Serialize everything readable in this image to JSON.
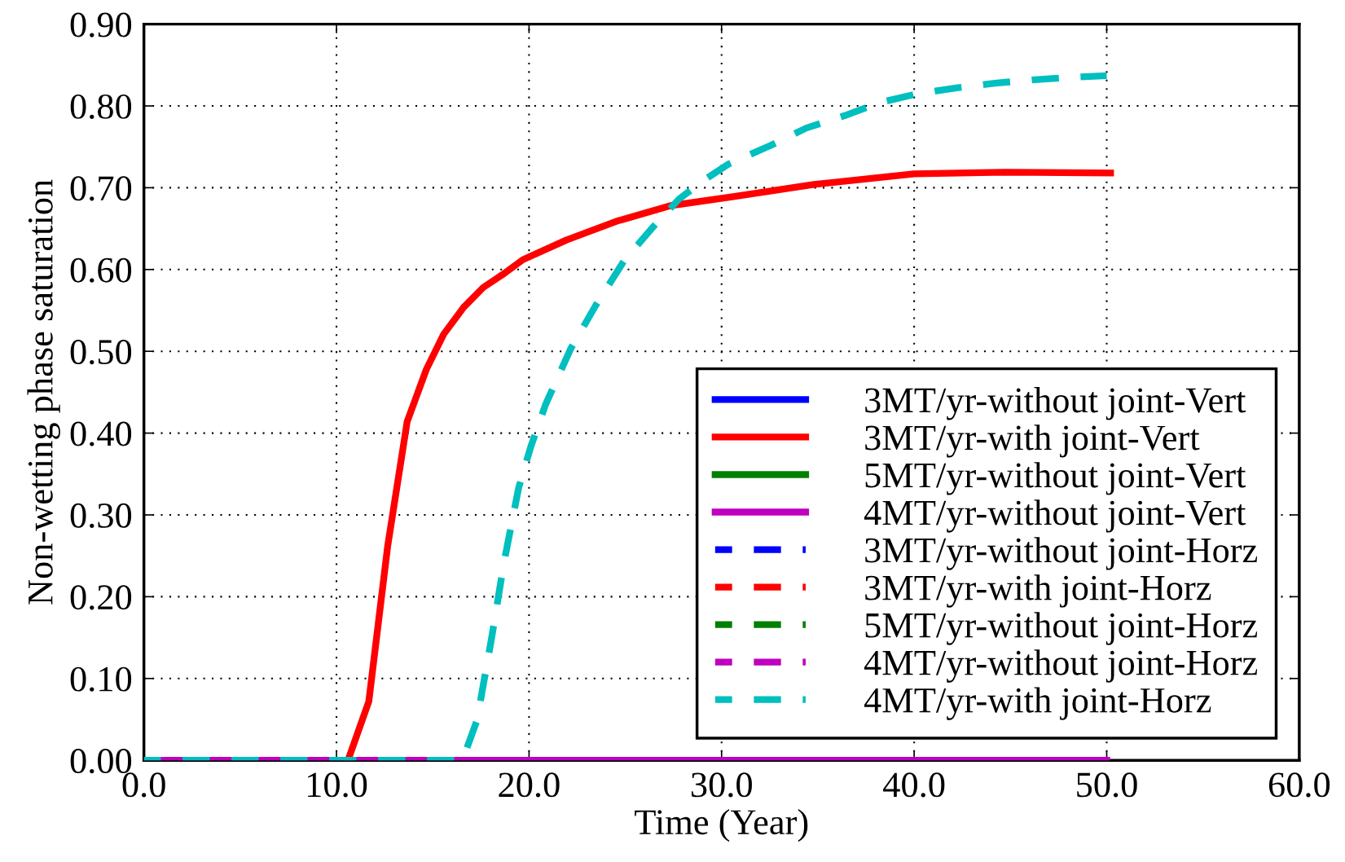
{
  "chart_data": {
    "type": "line",
    "xlabel": "Time (Year)",
    "ylabel": "Non-wetting phase saturation",
    "xlim": [
      0,
      60
    ],
    "ylim": [
      0,
      0.9
    ],
    "xticks": [
      {
        "value": 0,
        "label": "0.0"
      },
      {
        "value": 10,
        "label": "10.0"
      },
      {
        "value": 20,
        "label": "20.0"
      },
      {
        "value": 30,
        "label": "30.0"
      },
      {
        "value": 40,
        "label": "40.0"
      },
      {
        "value": 50,
        "label": "50.0"
      },
      {
        "value": 60,
        "label": "60.0"
      }
    ],
    "yticks": [
      {
        "value": 0,
        "label": "0.00"
      },
      {
        "value": 0.1,
        "label": "0.10"
      },
      {
        "value": 0.2,
        "label": "0.20"
      },
      {
        "value": 0.3,
        "label": "0.30"
      },
      {
        "value": 0.4,
        "label": "0.40"
      },
      {
        "value": 0.5,
        "label": "0.50"
      },
      {
        "value": 0.6,
        "label": "0.60"
      },
      {
        "value": 0.7,
        "label": "0.70"
      },
      {
        "value": 0.8,
        "label": "0.80"
      },
      {
        "value": 0.9,
        "label": "0.90"
      }
    ],
    "grid": true,
    "legend": "bottom right",
    "series": [
      {
        "name": "3MT/yr-without joint-Vert",
        "color": "#0000ff",
        "line_style": "solid"
      },
      {
        "name": "3MT/yr-with joint-Vert",
        "color": "#ff0000",
        "line_style": "solid",
        "x": [
          10.6,
          11.68,
          12.66,
          13.67,
          14.67,
          15.57,
          16.61,
          17.62,
          18.64,
          19.68,
          21.94,
          24.54,
          27.34,
          30.6,
          34.8,
          40.0,
          44.7,
          50.2
        ],
        "values": [
          0,
          0.072,
          0.262,
          0.414,
          0.478,
          0.521,
          0.554,
          0.578,
          0.594,
          0.612,
          0.636,
          0.659,
          0.678,
          0.689,
          0.704,
          0.717,
          0.719,
          0.718
        ]
      },
      {
        "name": "5MT/yr-without joint-Vert",
        "color": "#008000",
        "line_style": "solid"
      },
      {
        "name": "4MT/yr-without joint-Vert",
        "color": "#bf00bf",
        "line_style": "solid",
        "x": [
          0,
          50
        ],
        "values": [
          0,
          0
        ]
      },
      {
        "name": "3MT/yr-without joint-Horz",
        "color": "#0000ff",
        "line_style": "dashed"
      },
      {
        "name": "3MT/yr-with joint-Horz",
        "color": "#ff0000",
        "line_style": "dashed"
      },
      {
        "name": "5MT/yr-without joint-Horz",
        "color": "#008000",
        "line_style": "dashed"
      },
      {
        "name": "4MT/yr-without joint-Horz",
        "color": "#bf00bf",
        "line_style": "dashed"
      },
      {
        "name": "4MT/yr-with joint-Horz",
        "color": "#00bfbf",
        "line_style": "dashed",
        "x": [
          0,
          16.54,
          17.3,
          18.06,
          18.7,
          19.46,
          20.1,
          20.86,
          22.16,
          23.46,
          24.97,
          26.48,
          27.78,
          29.07,
          30.37,
          32.57,
          34.4,
          36.38,
          38.2,
          40.2,
          42.2,
          44.3,
          46.25,
          48.2,
          50.0
        ],
        "values": [
          0,
          0,
          0.049,
          0.15,
          0.242,
          0.333,
          0.384,
          0.435,
          0.503,
          0.556,
          0.612,
          0.653,
          0.686,
          0.709,
          0.729,
          0.752,
          0.773,
          0.788,
          0.804,
          0.815,
          0.822,
          0.828,
          0.832,
          0.835,
          0.837
        ]
      }
    ]
  }
}
